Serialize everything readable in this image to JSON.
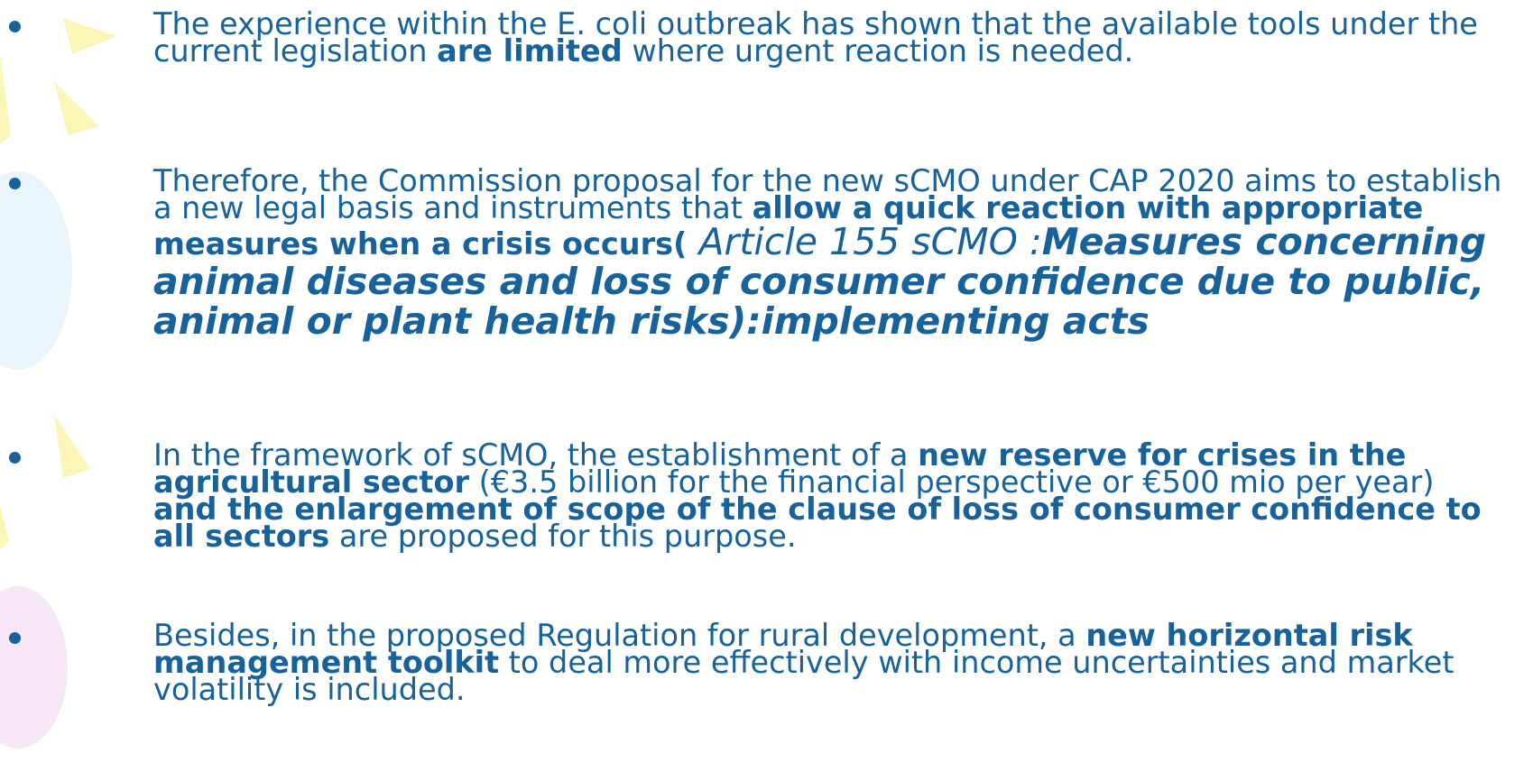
{
  "bullets": [
    {
      "runs": [
        {
          "text": "The experience within the E. coli outbreak has shown that the available tools under the current legislation ",
          "bold": false,
          "italic": false,
          "large": false
        },
        {
          "text": "are limited",
          "bold": true,
          "italic": false,
          "large": false
        },
        {
          "text": " where urgent reaction is needed.",
          "bold": false,
          "italic": false,
          "large": false
        }
      ]
    },
    {
      "runs": [
        {
          "text": "Therefore, the Commission proposal for the new sCMO under CAP 2020 aims to establish a new legal basis and instruments that ",
          "bold": false,
          "italic": false,
          "large": false
        },
        {
          "text": "allow a quick reaction with appropriate measures when a crisis occurs(",
          "bold": true,
          "italic": false,
          "large": false
        },
        {
          "text": " Article 155 sCMO :",
          "bold": false,
          "italic": true,
          "large": true
        },
        {
          "text": "Measures concerning animal diseases and loss of consumer confidence due to public, animal or plant health risks):implementing acts",
          "bold": true,
          "italic": true,
          "large": true
        }
      ]
    },
    {
      "runs": [
        {
          "text": "In the framework of sCMO, the establishment of a ",
          "bold": false,
          "italic": false,
          "large": false
        },
        {
          "text": "new reserve for crises in the agricultural sector",
          "bold": true,
          "italic": false,
          "large": false
        },
        {
          "text": " (€3.5 billion for the financial perspective or €500 mio per year) ",
          "bold": false,
          "italic": false,
          "large": false
        },
        {
          "text": "and the enlargement of scope of the clause of loss of consumer confidence to all sectors",
          "bold": true,
          "italic": false,
          "large": false
        },
        {
          "text": " are proposed for this purpose.",
          "bold": false,
          "italic": false,
          "large": false
        }
      ]
    },
    {
      "runs": [
        {
          "text": "Besides, in the proposed Regulation for rural development, a ",
          "bold": false,
          "italic": false,
          "large": false
        },
        {
          "text": "new horizontal risk management toolkit",
          "bold": true,
          "italic": false,
          "large": false
        },
        {
          "text": " to deal more effectively with income uncertainties and market volatility is included.",
          "bold": false,
          "italic": false,
          "large": false
        }
      ]
    }
  ]
}
